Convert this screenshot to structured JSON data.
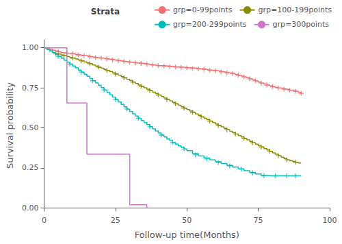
{
  "chart_data": {
    "type": "step",
    "xlabel": "Follow-up time(Months)",
    "ylabel": "Survival probability",
    "xlim": [
      0,
      100
    ],
    "ylim": [
      -0.02,
      1.05
    ],
    "xticks": [
      0,
      25,
      50,
      75,
      100
    ],
    "yticks": [
      {
        "value": 0,
        "label": "0.00"
      },
      {
        "value": 0.25,
        "label": "0.25"
      },
      {
        "value": 0.5,
        "label": "0.50"
      },
      {
        "value": 0.75,
        "label": "0.75"
      },
      {
        "value": 1,
        "label": "1.00"
      }
    ],
    "grid": false,
    "legend": "upper right",
    "legend_title": "Strata",
    "marker": "plus",
    "series": [
      {
        "name": "grp=0-99points",
        "color": "#F07070",
        "x": [
          0,
          1,
          2,
          3,
          4,
          5,
          6,
          7,
          8,
          9,
          10,
          11,
          12,
          13,
          14,
          15,
          16,
          17,
          18,
          19,
          20,
          21,
          22,
          23,
          24,
          25,
          26,
          27,
          28,
          29,
          30,
          31,
          32,
          33,
          34,
          35,
          36,
          37,
          38,
          39,
          40,
          42,
          44,
          46,
          48,
          50,
          52,
          54,
          56,
          57,
          58,
          59,
          60,
          61,
          62,
          63,
          64,
          65,
          66,
          67,
          68,
          69,
          70,
          71,
          72,
          73,
          74,
          75,
          76,
          77,
          78,
          79,
          80,
          81,
          82,
          83,
          84,
          85,
          86,
          87,
          88,
          89,
          90
        ],
        "values": [
          1.0,
          0.995,
          0.99,
          0.985,
          0.98,
          0.975,
          0.97,
          0.968,
          0.966,
          0.964,
          0.962,
          0.958,
          0.955,
          0.952,
          0.95,
          0.947,
          0.944,
          0.941,
          0.939,
          0.937,
          0.935,
          0.932,
          0.93,
          0.928,
          0.925,
          0.922,
          0.919,
          0.916,
          0.914,
          0.912,
          0.91,
          0.908,
          0.906,
          0.904,
          0.902,
          0.9,
          0.897,
          0.894,
          0.892,
          0.89,
          0.888,
          0.885,
          0.882,
          0.88,
          0.877,
          0.874,
          0.871,
          0.868,
          0.865,
          0.862,
          0.86,
          0.858,
          0.856,
          0.853,
          0.85,
          0.847,
          0.844,
          0.841,
          0.838,
          0.833,
          0.828,
          0.823,
          0.818,
          0.812,
          0.806,
          0.8,
          0.793,
          0.786,
          0.779,
          0.773,
          0.767,
          0.762,
          0.757,
          0.753,
          0.749,
          0.746,
          0.742,
          0.739,
          0.735,
          0.732,
          0.728,
          0.721,
          0.715
        ],
        "censor_x": [
          5,
          8,
          10,
          12,
          14,
          16,
          18,
          20,
          22,
          24,
          26,
          28,
          30,
          32,
          34,
          36,
          38,
          40,
          42,
          44,
          46,
          48,
          50,
          52,
          54,
          56,
          58,
          60,
          62,
          64,
          66,
          68,
          70,
          72,
          74,
          76,
          78,
          80,
          82,
          84,
          86,
          88,
          90
        ],
        "censor_values": [
          0.975,
          0.966,
          0.962,
          0.955,
          0.95,
          0.944,
          0.939,
          0.935,
          0.93,
          0.925,
          0.919,
          0.914,
          0.91,
          0.906,
          0.902,
          0.897,
          0.892,
          0.888,
          0.885,
          0.882,
          0.88,
          0.877,
          0.874,
          0.871,
          0.868,
          0.865,
          0.86,
          0.856,
          0.85,
          0.844,
          0.838,
          0.828,
          0.818,
          0.806,
          0.793,
          0.779,
          0.767,
          0.757,
          0.749,
          0.742,
          0.735,
          0.728,
          0.715
        ]
      },
      {
        "name": "grp=100-199points",
        "color": "#8B8B00",
        "x": [
          0,
          1,
          2,
          3,
          4,
          5,
          6,
          7,
          8,
          9,
          10,
          11,
          12,
          13,
          14,
          15,
          16,
          17,
          18,
          19,
          20,
          21,
          22,
          23,
          24,
          25,
          26,
          27,
          28,
          29,
          30,
          31,
          32,
          33,
          34,
          35,
          36,
          37,
          38,
          39,
          40,
          41,
          42,
          43,
          44,
          45,
          46,
          47,
          48,
          49,
          50,
          51,
          52,
          53,
          54,
          55,
          56,
          57,
          58,
          59,
          60,
          61,
          62,
          63,
          64,
          65,
          66,
          67,
          68,
          69,
          70,
          71,
          72,
          73,
          74,
          75,
          76,
          77,
          78,
          79,
          80,
          81,
          82,
          83,
          84,
          85,
          86,
          87,
          88,
          89,
          90
        ],
        "values": [
          1.0,
          0.99,
          0.98,
          0.97,
          0.965,
          0.96,
          0.955,
          0.95,
          0.945,
          0.94,
          0.935,
          0.93,
          0.924,
          0.918,
          0.912,
          0.906,
          0.9,
          0.893,
          0.886,
          0.879,
          0.872,
          0.865,
          0.858,
          0.851,
          0.844,
          0.836,
          0.828,
          0.82,
          0.812,
          0.803,
          0.795,
          0.786,
          0.777,
          0.768,
          0.759,
          0.75,
          0.741,
          0.732,
          0.723,
          0.714,
          0.705,
          0.696,
          0.686,
          0.677,
          0.668,
          0.659,
          0.65,
          0.641,
          0.632,
          0.623,
          0.614,
          0.605,
          0.596,
          0.587,
          0.578,
          0.569,
          0.56,
          0.551,
          0.542,
          0.533,
          0.524,
          0.515,
          0.506,
          0.497,
          0.488,
          0.479,
          0.47,
          0.461,
          0.452,
          0.443,
          0.434,
          0.425,
          0.416,
          0.407,
          0.398,
          0.389,
          0.38,
          0.371,
          0.362,
          0.353,
          0.344,
          0.335,
          0.326,
          0.317,
          0.308,
          0.3,
          0.295,
          0.29,
          0.285,
          0.281,
          0.278
        ],
        "censor_x": [
          4,
          7,
          10,
          13,
          16,
          19,
          22,
          25,
          28,
          31,
          34,
          37,
          40,
          43,
          46,
          49,
          52,
          55,
          58,
          61,
          64,
          67,
          70,
          73,
          76,
          79,
          82,
          85,
          88
        ],
        "censor_values": [
          0.965,
          0.95,
          0.935,
          0.918,
          0.9,
          0.879,
          0.858,
          0.836,
          0.812,
          0.786,
          0.759,
          0.732,
          0.705,
          0.677,
          0.65,
          0.623,
          0.596,
          0.569,
          0.542,
          0.515,
          0.488,
          0.461,
          0.434,
          0.407,
          0.38,
          0.353,
          0.326,
          0.3,
          0.285
        ]
      },
      {
        "name": "grp=200-299points",
        "color": "#00BEBE",
        "x": [
          0,
          1,
          2,
          3,
          4,
          5,
          6,
          7,
          8,
          9,
          10,
          11,
          12,
          13,
          14,
          15,
          16,
          17,
          18,
          19,
          20,
          21,
          22,
          23,
          24,
          25,
          26,
          27,
          28,
          29,
          30,
          31,
          32,
          33,
          34,
          35,
          36,
          37,
          38,
          39,
          40,
          41,
          42,
          43,
          44,
          45,
          46,
          47,
          48,
          49,
          50,
          52,
          54,
          56,
          58,
          60,
          62,
          64,
          66,
          68,
          70,
          72,
          74,
          76,
          78,
          80,
          82,
          84,
          86,
          88,
          90
        ],
        "values": [
          1.0,
          0.99,
          0.98,
          0.97,
          0.958,
          0.946,
          0.934,
          0.922,
          0.91,
          0.898,
          0.886,
          0.874,
          0.861,
          0.848,
          0.835,
          0.822,
          0.808,
          0.794,
          0.78,
          0.766,
          0.752,
          0.737,
          0.722,
          0.707,
          0.692,
          0.677,
          0.662,
          0.647,
          0.632,
          0.617,
          0.602,
          0.588,
          0.574,
          0.56,
          0.546,
          0.533,
          0.52,
          0.507,
          0.494,
          0.481,
          0.468,
          0.455,
          0.443,
          0.431,
          0.42,
          0.409,
          0.398,
          0.388,
          0.378,
          0.368,
          0.358,
          0.34,
          0.325,
          0.312,
          0.3,
          0.288,
          0.277,
          0.266,
          0.255,
          0.244,
          0.233,
          0.222,
          0.212,
          0.203,
          0.2,
          0.2,
          0.2,
          0.2,
          0.2,
          0.2,
          0.2
        ],
        "censor_x": [
          5,
          9,
          13,
          17,
          21,
          25,
          29,
          33,
          37,
          41,
          45,
          49,
          53,
          57,
          61,
          65,
          69,
          73,
          77,
          81,
          85,
          88
        ],
        "censor_values": [
          0.946,
          0.898,
          0.848,
          0.794,
          0.737,
          0.677,
          0.617,
          0.56,
          0.507,
          0.455,
          0.409,
          0.368,
          0.332,
          0.306,
          0.284,
          0.262,
          0.242,
          0.218,
          0.201,
          0.2,
          0.2,
          0.2
        ]
      },
      {
        "name": "grp=300points",
        "color": "#CC77CC",
        "x": [
          0,
          8,
          8,
          15,
          15,
          20,
          20,
          30,
          30,
          36
        ],
        "values": [
          1.0,
          1.0,
          0.655,
          0.655,
          0.335,
          0.335,
          0.335,
          0.335,
          0.02,
          0.0
        ],
        "censor_x": [],
        "censor_values": []
      }
    ]
  }
}
